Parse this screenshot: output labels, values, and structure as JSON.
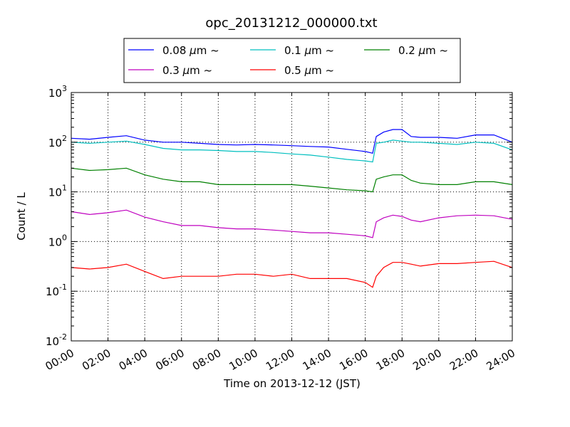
{
  "chart_data": {
    "type": "line",
    "title": "opc_20131212_000000.txt",
    "xlabel": "Time on 2013-12-12 (JST)",
    "ylabel": "Count / L",
    "x_ticks": [
      "00:00",
      "02:00",
      "04:00",
      "06:00",
      "08:00",
      "10:00",
      "12:00",
      "14:00",
      "16:00",
      "18:00",
      "20:00",
      "22:00",
      "24:00"
    ],
    "xlim_hours": [
      0,
      24
    ],
    "y_scale": "log",
    "ylim": [
      0.01,
      1000
    ],
    "y_ticks": [
      {
        "base": "10",
        "exp": "-2"
      },
      {
        "base": "10",
        "exp": "-1"
      },
      {
        "base": "10",
        "exp": "0"
      },
      {
        "base": "10",
        "exp": "1"
      },
      {
        "base": "10",
        "exp": "2"
      },
      {
        "base": "10",
        "exp": "3"
      }
    ],
    "grid": true,
    "legend_position": "top-center",
    "x_hours": [
      0,
      1,
      2,
      3,
      4,
      5,
      6,
      7,
      8,
      9,
      10,
      11,
      12,
      13,
      14,
      15,
      16,
      16.4,
      16.6,
      17,
      17.5,
      18,
      18.5,
      19,
      20,
      21,
      22,
      23,
      24
    ],
    "series": [
      {
        "name": "0.08 μm ~",
        "legend_label": "0.08",
        "color": "#0000ff",
        "values": [
          120,
          115,
          125,
          135,
          110,
          100,
          100,
          95,
          90,
          88,
          90,
          88,
          85,
          82,
          80,
          72,
          65,
          60,
          130,
          160,
          180,
          180,
          130,
          125,
          125,
          120,
          140,
          140,
          100
        ]
      },
      {
        "name": "0.1 μm ~",
        "legend_label": "0.1",
        "color": "#00bfbf",
        "values": [
          100,
          95,
          100,
          105,
          90,
          75,
          70,
          70,
          68,
          65,
          65,
          62,
          58,
          55,
          50,
          45,
          42,
          40,
          95,
          100,
          110,
          105,
          100,
          100,
          95,
          90,
          100,
          95,
          70
        ]
      },
      {
        "name": "0.2 μm ~",
        "legend_label": "0.2",
        "color": "#008000",
        "values": [
          30,
          27,
          28,
          30,
          22,
          18,
          16,
          16,
          14,
          14,
          14,
          14,
          14,
          13,
          12,
          11,
          10.5,
          10,
          18,
          20,
          22,
          22,
          17,
          15,
          14,
          14,
          16,
          16,
          14
        ]
      },
      {
        "name": "0.3 μm ~",
        "legend_label": "0.3",
        "color": "#bf00bf",
        "values": [
          4,
          3.5,
          3.8,
          4.3,
          3.1,
          2.5,
          2.1,
          2.1,
          1.9,
          1.8,
          1.8,
          1.7,
          1.6,
          1.5,
          1.5,
          1.4,
          1.3,
          1.2,
          2.5,
          3,
          3.4,
          3.2,
          2.7,
          2.5,
          3,
          3.3,
          3.4,
          3.3,
          2.8
        ]
      },
      {
        "name": "0.5 μm ~",
        "legend_label": "0.5",
        "color": "#ff0000",
        "values": [
          0.3,
          0.28,
          0.3,
          0.35,
          0.25,
          0.18,
          0.2,
          0.2,
          0.2,
          0.22,
          0.22,
          0.2,
          0.22,
          0.18,
          0.18,
          0.18,
          0.15,
          0.12,
          0.2,
          0.3,
          0.38,
          0.38,
          0.35,
          0.32,
          0.36,
          0.36,
          0.38,
          0.4,
          0.3
        ]
      }
    ],
    "legend": {
      "unit_symbol": "μm",
      "suffix": "~"
    }
  }
}
